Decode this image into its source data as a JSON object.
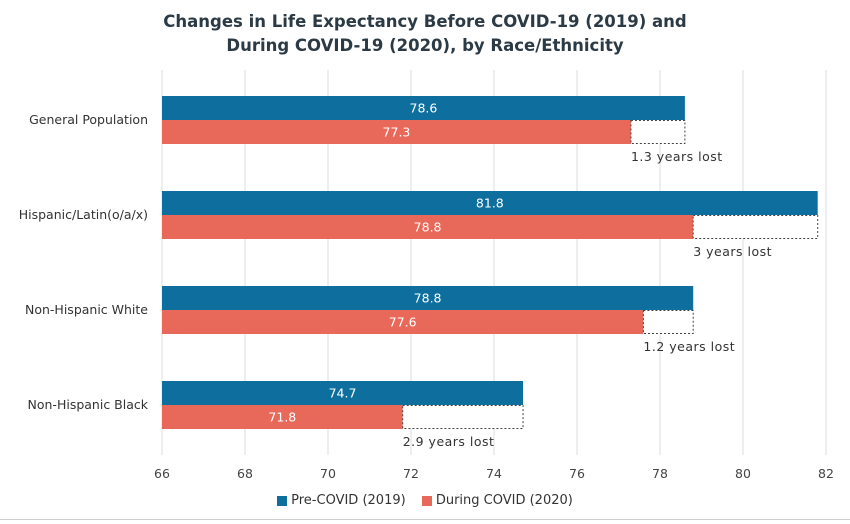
{
  "chart_data": {
    "type": "bar",
    "orientation": "horizontal",
    "title_lines": [
      "Changes in Life Expectancy Before COVID-19 (2019) and",
      "During COVID-19 (2020), by Race/Ethnicity"
    ],
    "categories": [
      "General Population",
      "Hispanic/Latin(o/a/x)",
      "Non-Hispanic White",
      "Non-Hispanic Black"
    ],
    "series": [
      {
        "name": "Pre-COVID (2019)",
        "color": "#0e6f9e",
        "values": [
          78.6,
          81.8,
          78.8,
          74.7
        ],
        "labels": [
          "78.6",
          "81.8",
          "78.8",
          "74.7"
        ]
      },
      {
        "name": "During COVID (2020)",
        "color": "#e8695a",
        "values": [
          77.3,
          78.8,
          77.6,
          71.8
        ],
        "labels": [
          "77.3",
          "78.8",
          "77.6",
          "71.8"
        ]
      }
    ],
    "gap_annotations": [
      "1.3 years lost",
      "3 years lost",
      "1.2 years lost",
      "2.9 years lost"
    ],
    "xlim": [
      66,
      82
    ],
    "xticks": [
      "66",
      "68",
      "70",
      "72",
      "74",
      "76",
      "78",
      "80",
      "82"
    ],
    "grid": true,
    "legend": "bottom"
  }
}
